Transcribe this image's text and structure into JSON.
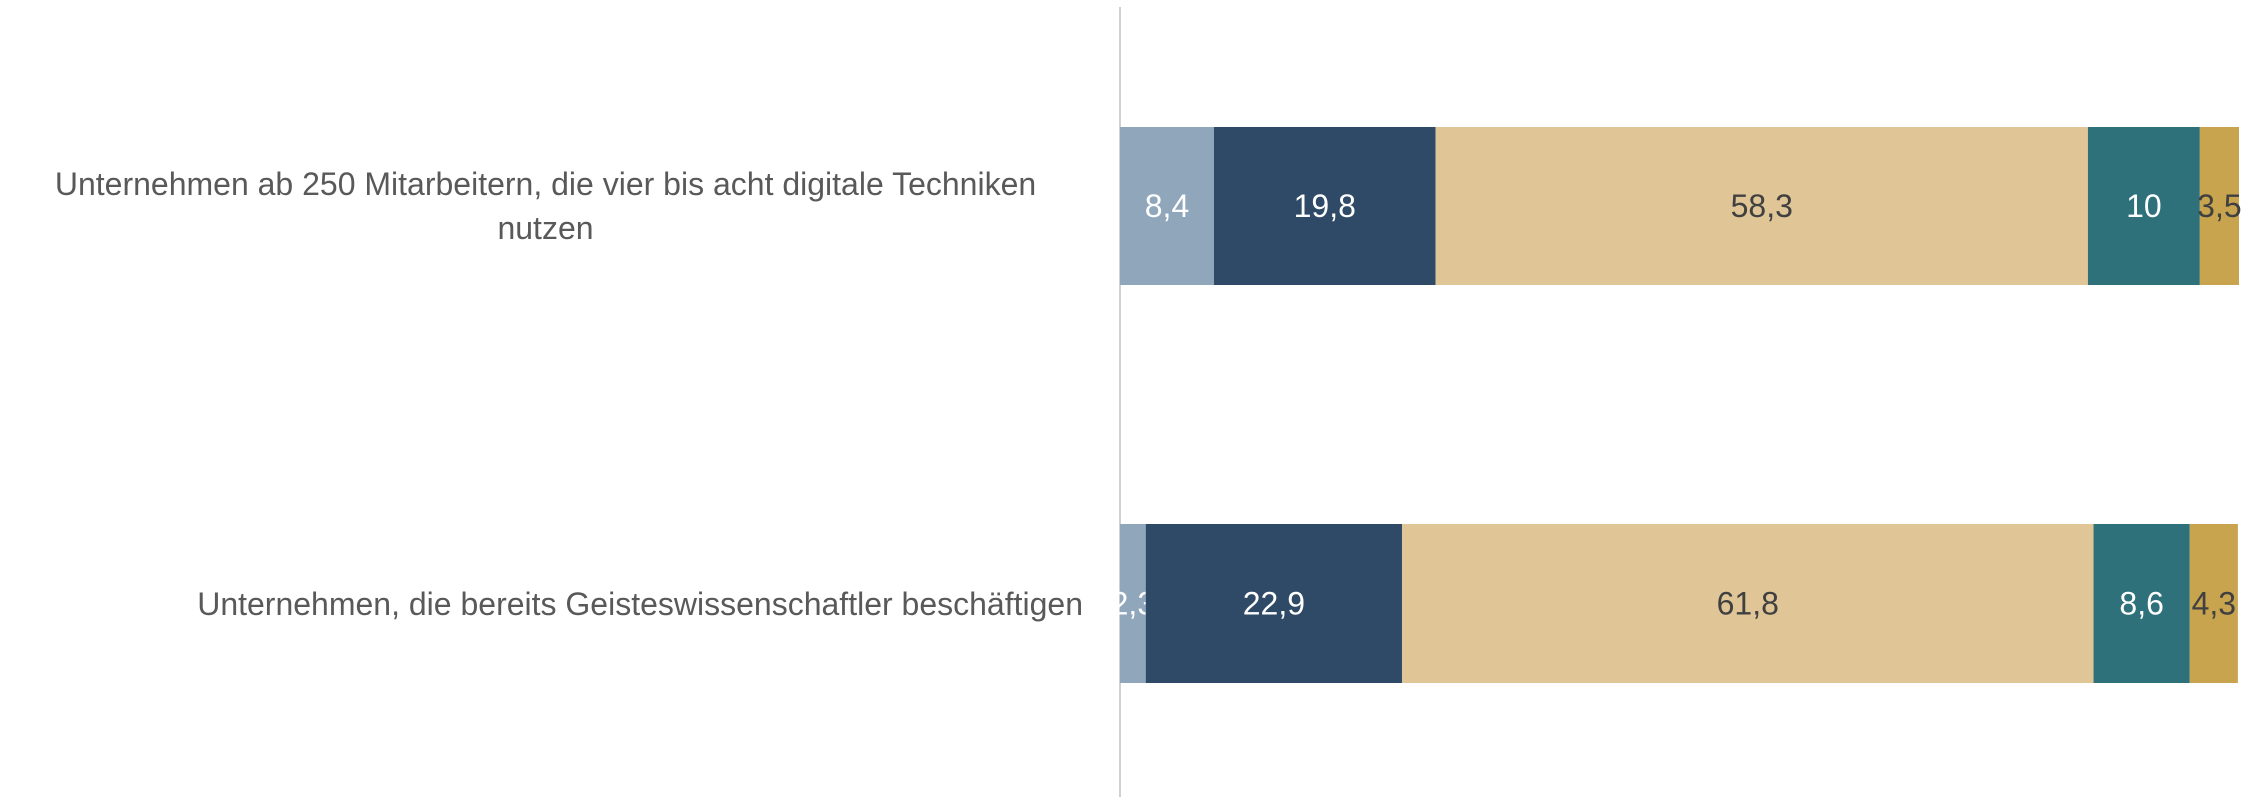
{
  "chart_data": {
    "type": "stacked_barh",
    "categories": [
      "Unternehmen ab 250 Mitarbeitern, die vier bis acht digitale Techniken nutzen",
      "Unternehmen, die bereits Geisteswissenschaftler beschäftigen"
    ],
    "series": [
      {
        "color": "#8fa6bb",
        "label_color": "#ffffff",
        "values": [
          8.4,
          2.3
        ],
        "value_labels": [
          "8,4",
          "2,3"
        ]
      },
      {
        "color": "#2e4a66",
        "label_color": "#ffffff",
        "values": [
          19.8,
          22.9
        ],
        "value_labels": [
          "19,8",
          "22,9"
        ]
      },
      {
        "color": "#e0c597",
        "label_color": "#404040",
        "values": [
          58.3,
          61.8
        ],
        "value_labels": [
          "58,3",
          "61,8"
        ]
      },
      {
        "color": "#2f717b",
        "label_color": "#ffffff",
        "values": [
          10,
          8.6
        ],
        "value_labels": [
          "10",
          "8,6"
        ]
      },
      {
        "color": "#c9a44f",
        "label_color": "#404040",
        "values": [
          3.5,
          4.3
        ],
        "value_labels": [
          "3,5",
          "4,3"
        ]
      }
    ],
    "xlim": [
      0,
      100
    ]
  }
}
